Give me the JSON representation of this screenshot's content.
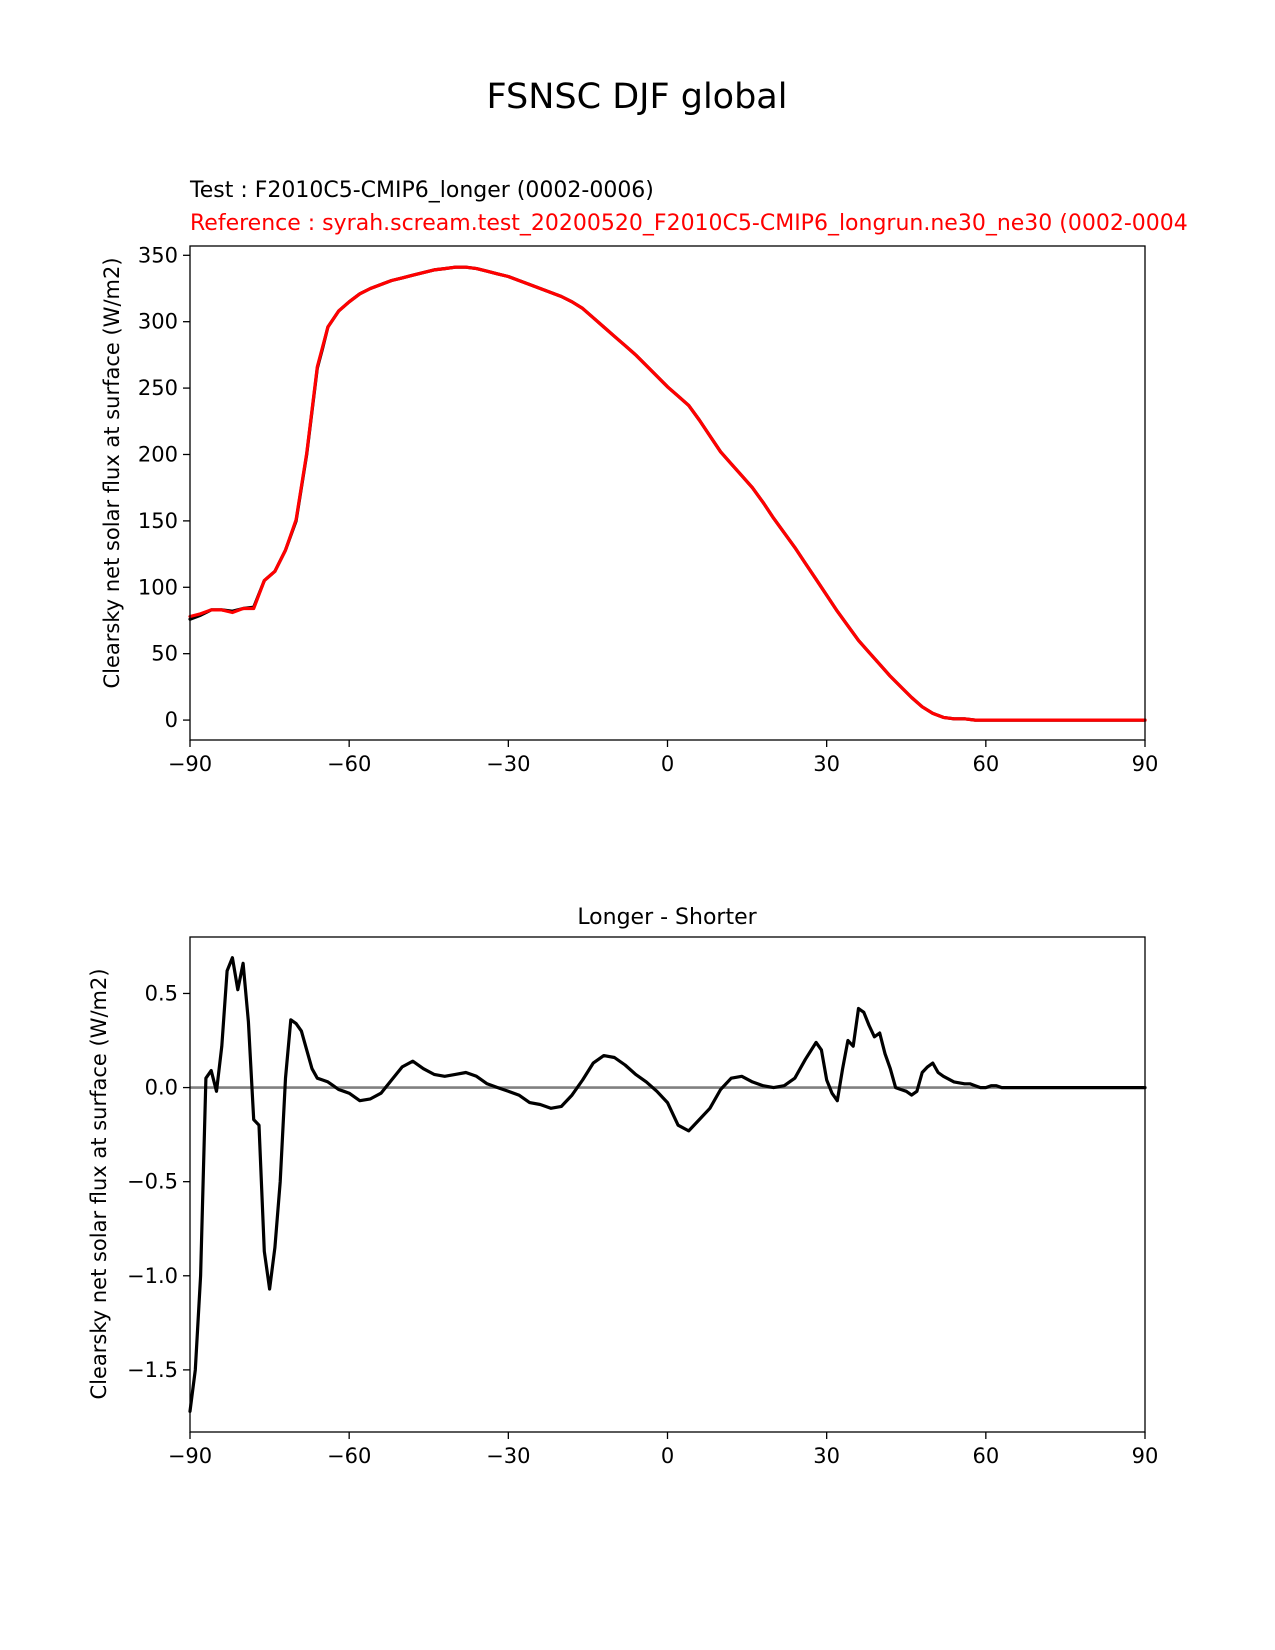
{
  "figure": {
    "suptitle": "FSNSC DJF global"
  },
  "chart_data": [
    {
      "type": "line",
      "title": "",
      "test_label": "Test : F2010C5-CMIP6_longer (0002-0006)",
      "reference_label": "Reference : syrah.scream.test_20200520_F2010C5-CMIP6_longrun.ne30_ne30 (0002-0004",
      "xlabel": "",
      "ylabel": "Clearsky net solar flux at surface (W/m2)",
      "xlim": [
        -90,
        90
      ],
      "ylim": [
        -15,
        357
      ],
      "xticks": [
        -90,
        -60,
        -30,
        0,
        30,
        60,
        90
      ],
      "yticks": [
        0,
        50,
        100,
        150,
        200,
        250,
        300,
        350
      ],
      "x": [
        -90,
        -88,
        -86,
        -84,
        -82,
        -80,
        -78,
        -76,
        -74,
        -72,
        -70,
        -68,
        -66,
        -65,
        -64,
        -62,
        -60,
        -58,
        -56,
        -54,
        -52,
        -50,
        -48,
        -46,
        -44,
        -42,
        -40,
        -38,
        -36,
        -34,
        -32,
        -30,
        -28,
        -26,
        -24,
        -22,
        -20,
        -18,
        -16,
        -14,
        -12,
        -10,
        -8,
        -6,
        -4,
        -2,
        0,
        2,
        4,
        6,
        8,
        10,
        12,
        14,
        16,
        18,
        20,
        22,
        24,
        26,
        28,
        30,
        32,
        34,
        36,
        38,
        40,
        42,
        44,
        46,
        48,
        50,
        52,
        54,
        56,
        58,
        60,
        62,
        64,
        66,
        68,
        70,
        72,
        74,
        76,
        78,
        80,
        82,
        84,
        86,
        88,
        90
      ],
      "series": [
        {
          "name": "Test",
          "color": "#000000",
          "values": [
            76,
            79,
            83,
            83,
            82,
            84,
            85,
            105,
            112,
            128,
            150,
            200,
            265,
            280,
            296,
            308,
            315,
            321,
            325,
            328,
            331,
            333,
            335,
            337,
            339,
            340,
            341,
            341,
            340,
            338,
            336,
            334,
            331,
            328,
            325,
            322,
            319,
            315,
            310,
            303,
            296,
            289,
            282,
            275,
            267,
            259,
            251,
            244,
            237,
            226,
            214,
            202,
            193,
            184,
            175,
            164,
            152,
            141,
            130,
            118,
            106,
            94,
            82,
            71,
            60,
            51,
            42,
            33,
            25,
            17,
            10,
            5,
            2,
            1,
            1,
            0,
            0,
            0,
            0,
            0,
            0,
            0,
            0,
            0,
            0,
            0,
            0,
            0,
            0,
            0,
            0,
            0
          ]
        },
        {
          "name": "Reference",
          "color": "#ff0000",
          "values": [
            78,
            80,
            83,
            83,
            81,
            84,
            84,
            105,
            112,
            128,
            151,
            201,
            266,
            281,
            296,
            308,
            315,
            321,
            325,
            328,
            331,
            333,
            335,
            337,
            339,
            340,
            341,
            341,
            340,
            338,
            336,
            334,
            331,
            328,
            325,
            322,
            319,
            315,
            310,
            303,
            296,
            289,
            282,
            275,
            267,
            259,
            251,
            244,
            237,
            226,
            214,
            202,
            193,
            184,
            175,
            164,
            152,
            141,
            130,
            118,
            106,
            94,
            82,
            71,
            60,
            51,
            42,
            33,
            25,
            17,
            10,
            5,
            2,
            1,
            1,
            0,
            0,
            0,
            0,
            0,
            0,
            0,
            0,
            0,
            0,
            0,
            0,
            0,
            0,
            0,
            0,
            0
          ]
        }
      ]
    },
    {
      "type": "line",
      "title": "Longer - Shorter",
      "xlabel": "",
      "ylabel": "Clearsky net solar flux at surface (W/m2)",
      "xlim": [
        -90,
        90
      ],
      "ylim": [
        -1.83,
        0.8
      ],
      "xticks": [
        -90,
        -60,
        -30,
        0,
        30,
        60,
        90
      ],
      "yticks": [
        -1.5,
        -1.0,
        -0.5,
        0.0,
        0.5
      ],
      "zero_line_color": "#808080",
      "series": [
        {
          "name": "",
          "color": "#000000",
          "x": [
            -90,
            -89,
            -88,
            -87,
            -86,
            -85,
            -84,
            -83,
            -82,
            -81,
            -80,
            -79,
            -78,
            -77,
            -76,
            -75,
            -74,
            -73,
            -72,
            -71,
            -70,
            -69,
            -68,
            -67,
            -66,
            -65,
            -64,
            -63,
            -62,
            -61,
            -60,
            -58,
            -56,
            -54,
            -52,
            -50,
            -48,
            -46,
            -44,
            -42,
            -40,
            -38,
            -36,
            -34,
            -32,
            -30,
            -28,
            -26,
            -24,
            -22,
            -20,
            -18,
            -16,
            -14,
            -12,
            -10,
            -8,
            -6,
            -4,
            -2,
            0,
            2,
            4,
            6,
            8,
            10,
            12,
            14,
            16,
            18,
            20,
            22,
            24,
            26,
            28,
            29,
            30,
            31,
            32,
            33,
            34,
            35,
            36,
            37,
            38,
            39,
            40,
            41,
            42,
            43,
            44,
            45,
            46,
            47,
            48,
            49,
            50,
            51,
            52,
            54,
            56,
            57,
            58,
            59,
            60,
            61,
            62,
            63,
            64,
            66,
            68,
            70,
            72,
            74,
            76,
            78,
            80,
            82,
            84,
            86,
            88,
            90
          ],
          "values": [
            -1.72,
            -1.5,
            -1.0,
            0.05,
            0.09,
            -0.02,
            0.22,
            0.62,
            0.69,
            0.52,
            0.66,
            0.35,
            -0.17,
            -0.2,
            -0.87,
            -1.07,
            -0.85,
            -0.5,
            0.05,
            0.36,
            0.34,
            0.3,
            0.2,
            0.1,
            0.05,
            0.04,
            0.03,
            0.01,
            -0.01,
            -0.02,
            -0.03,
            -0.07,
            -0.06,
            -0.03,
            0.04,
            0.11,
            0.14,
            0.1,
            0.07,
            0.06,
            0.07,
            0.08,
            0.06,
            0.02,
            0.0,
            -0.02,
            -0.04,
            -0.08,
            -0.09,
            -0.11,
            -0.1,
            -0.04,
            0.04,
            0.13,
            0.17,
            0.16,
            0.12,
            0.07,
            0.03,
            -0.02,
            -0.08,
            -0.2,
            -0.23,
            -0.17,
            -0.11,
            -0.01,
            0.05,
            0.06,
            0.03,
            0.01,
            0.0,
            0.01,
            0.05,
            0.15,
            0.24,
            0.2,
            0.04,
            -0.03,
            -0.07,
            0.1,
            0.25,
            0.22,
            0.42,
            0.4,
            0.33,
            0.27,
            0.29,
            0.18,
            0.1,
            0.0,
            -0.01,
            -0.02,
            -0.04,
            -0.02,
            0.08,
            0.11,
            0.13,
            0.08,
            0.06,
            0.03,
            0.02,
            0.02,
            0.01,
            0.0,
            0.0,
            0.01,
            0.01,
            0.0,
            0.0,
            0.0,
            0.0,
            0.0,
            0.0,
            0.0,
            0.0,
            0.0,
            0.0,
            0.0,
            0.0,
            0.0,
            0.0,
            0.0
          ]
        }
      ]
    }
  ]
}
